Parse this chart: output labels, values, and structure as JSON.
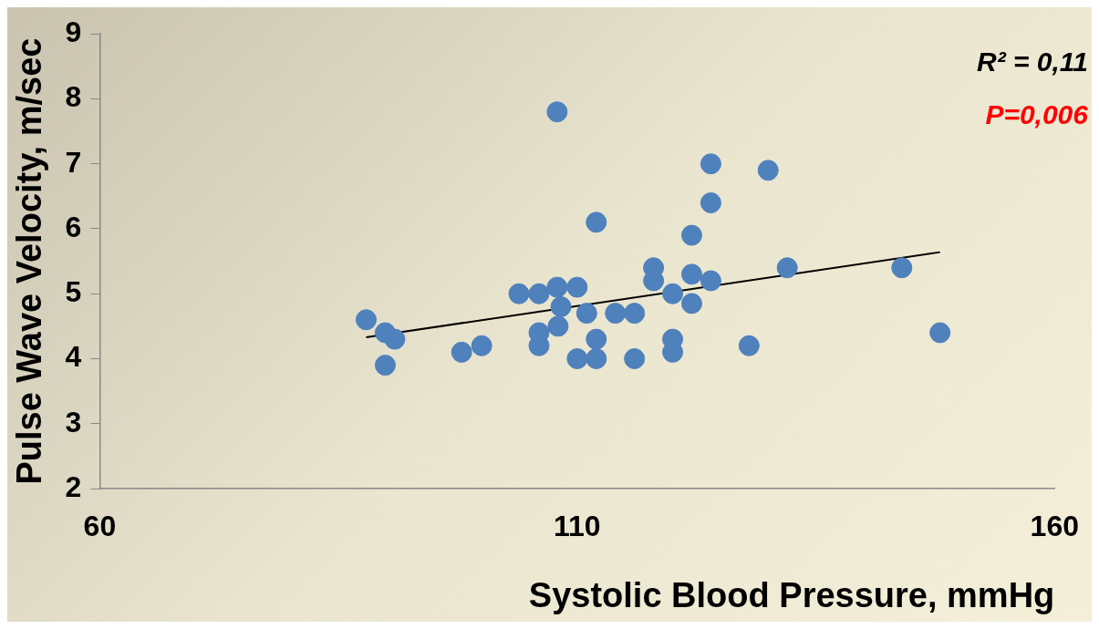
{
  "chart_data": {
    "type": "scatter",
    "xlabel": "Systolic Blood Pressure, mmHg",
    "ylabel": "Pulse Wave Velocity, m/sec",
    "xlim": [
      60,
      160
    ],
    "xticks": [
      60,
      110,
      160
    ],
    "ylim": [
      2,
      9
    ],
    "yticks": [
      2,
      3,
      4,
      5,
      6,
      7,
      8,
      9
    ],
    "grid": false,
    "legend": false,
    "marker": "circle",
    "annotations": [
      "R² = 0,11",
      "P=0,006"
    ],
    "series": [
      {
        "color": "#4f81bd",
        "x": [
          87.9,
          89.9,
          90.9,
          89.9,
          97.9,
          100,
          103.9,
          106,
          107.9,
          110,
          107.9,
          112,
          124,
          124,
          122,
          118,
          118,
          122,
          124,
          120,
          122,
          108.3,
          111,
          114,
          116,
          106,
          108,
          106,
          112,
          110,
          112,
          116,
          120,
          120,
          128,
          130,
          132,
          144,
          148
        ],
        "values": [
          4.6,
          4.4,
          4.3,
          3.9,
          4.1,
          4.2,
          5.0,
          5.0,
          5.1,
          5.1,
          7.8,
          6.1,
          7.0,
          6.4,
          5.9,
          5.4,
          5.2,
          5.3,
          5.2,
          5.0,
          4.85,
          4.8,
          4.7,
          4.7,
          4.7,
          4.4,
          4.5,
          4.2,
          4.3,
          4.0,
          4.0,
          4.0,
          4.3,
          4.1,
          4.2,
          6.9,
          5.4,
          5.4,
          4.4
        ]
      },
      {
        "type": "line",
        "color": "#000000",
        "x": [
          87.9,
          148
        ],
        "values": [
          4.33,
          5.64
        ],
        "marker": "none"
      }
    ]
  }
}
